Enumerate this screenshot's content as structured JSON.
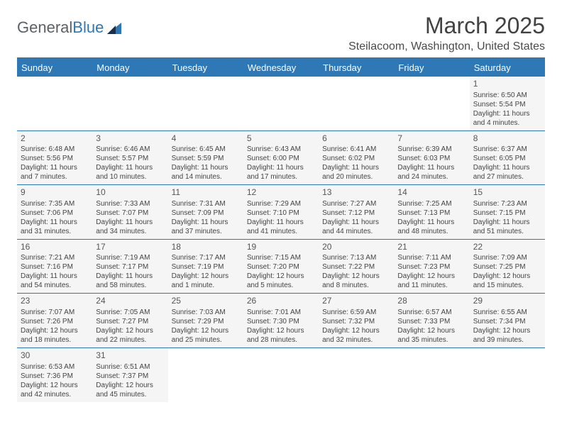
{
  "header": {
    "logo_text_1": "General",
    "logo_text_2": "Blue",
    "month_title": "March 2025",
    "location": "Steilacoom, Washington, United States"
  },
  "colors": {
    "brand_blue": "#2e78b6",
    "text_gray": "#444444",
    "header_text": "#ffffff",
    "cell_bg": "#f5f5f5",
    "page_bg": "#ffffff"
  },
  "typography": {
    "month_title_fontsize": 32,
    "location_fontsize": 16,
    "weekday_fontsize": 13,
    "daynum_fontsize": 12,
    "cell_fontsize": 10
  },
  "weekdays": [
    "Sunday",
    "Monday",
    "Tuesday",
    "Wednesday",
    "Thursday",
    "Friday",
    "Saturday"
  ],
  "weeks": [
    [
      null,
      null,
      null,
      null,
      null,
      null,
      {
        "day": "1",
        "sunrise": "Sunrise: 6:50 AM",
        "sunset": "Sunset: 5:54 PM",
        "daylight1": "Daylight: 11 hours",
        "daylight2": "and 4 minutes."
      }
    ],
    [
      {
        "day": "2",
        "sunrise": "Sunrise: 6:48 AM",
        "sunset": "Sunset: 5:56 PM",
        "daylight1": "Daylight: 11 hours",
        "daylight2": "and 7 minutes."
      },
      {
        "day": "3",
        "sunrise": "Sunrise: 6:46 AM",
        "sunset": "Sunset: 5:57 PM",
        "daylight1": "Daylight: 11 hours",
        "daylight2": "and 10 minutes."
      },
      {
        "day": "4",
        "sunrise": "Sunrise: 6:45 AM",
        "sunset": "Sunset: 5:59 PM",
        "daylight1": "Daylight: 11 hours",
        "daylight2": "and 14 minutes."
      },
      {
        "day": "5",
        "sunrise": "Sunrise: 6:43 AM",
        "sunset": "Sunset: 6:00 PM",
        "daylight1": "Daylight: 11 hours",
        "daylight2": "and 17 minutes."
      },
      {
        "day": "6",
        "sunrise": "Sunrise: 6:41 AM",
        "sunset": "Sunset: 6:02 PM",
        "daylight1": "Daylight: 11 hours",
        "daylight2": "and 20 minutes."
      },
      {
        "day": "7",
        "sunrise": "Sunrise: 6:39 AM",
        "sunset": "Sunset: 6:03 PM",
        "daylight1": "Daylight: 11 hours",
        "daylight2": "and 24 minutes."
      },
      {
        "day": "8",
        "sunrise": "Sunrise: 6:37 AM",
        "sunset": "Sunset: 6:05 PM",
        "daylight1": "Daylight: 11 hours",
        "daylight2": "and 27 minutes."
      }
    ],
    [
      {
        "day": "9",
        "sunrise": "Sunrise: 7:35 AM",
        "sunset": "Sunset: 7:06 PM",
        "daylight1": "Daylight: 11 hours",
        "daylight2": "and 31 minutes."
      },
      {
        "day": "10",
        "sunrise": "Sunrise: 7:33 AM",
        "sunset": "Sunset: 7:07 PM",
        "daylight1": "Daylight: 11 hours",
        "daylight2": "and 34 minutes."
      },
      {
        "day": "11",
        "sunrise": "Sunrise: 7:31 AM",
        "sunset": "Sunset: 7:09 PM",
        "daylight1": "Daylight: 11 hours",
        "daylight2": "and 37 minutes."
      },
      {
        "day": "12",
        "sunrise": "Sunrise: 7:29 AM",
        "sunset": "Sunset: 7:10 PM",
        "daylight1": "Daylight: 11 hours",
        "daylight2": "and 41 minutes."
      },
      {
        "day": "13",
        "sunrise": "Sunrise: 7:27 AM",
        "sunset": "Sunset: 7:12 PM",
        "daylight1": "Daylight: 11 hours",
        "daylight2": "and 44 minutes."
      },
      {
        "day": "14",
        "sunrise": "Sunrise: 7:25 AM",
        "sunset": "Sunset: 7:13 PM",
        "daylight1": "Daylight: 11 hours",
        "daylight2": "and 48 minutes."
      },
      {
        "day": "15",
        "sunrise": "Sunrise: 7:23 AM",
        "sunset": "Sunset: 7:15 PM",
        "daylight1": "Daylight: 11 hours",
        "daylight2": "and 51 minutes."
      }
    ],
    [
      {
        "day": "16",
        "sunrise": "Sunrise: 7:21 AM",
        "sunset": "Sunset: 7:16 PM",
        "daylight1": "Daylight: 11 hours",
        "daylight2": "and 54 minutes."
      },
      {
        "day": "17",
        "sunrise": "Sunrise: 7:19 AM",
        "sunset": "Sunset: 7:17 PM",
        "daylight1": "Daylight: 11 hours",
        "daylight2": "and 58 minutes."
      },
      {
        "day": "18",
        "sunrise": "Sunrise: 7:17 AM",
        "sunset": "Sunset: 7:19 PM",
        "daylight1": "Daylight: 12 hours",
        "daylight2": "and 1 minute."
      },
      {
        "day": "19",
        "sunrise": "Sunrise: 7:15 AM",
        "sunset": "Sunset: 7:20 PM",
        "daylight1": "Daylight: 12 hours",
        "daylight2": "and 5 minutes."
      },
      {
        "day": "20",
        "sunrise": "Sunrise: 7:13 AM",
        "sunset": "Sunset: 7:22 PM",
        "daylight1": "Daylight: 12 hours",
        "daylight2": "and 8 minutes."
      },
      {
        "day": "21",
        "sunrise": "Sunrise: 7:11 AM",
        "sunset": "Sunset: 7:23 PM",
        "daylight1": "Daylight: 12 hours",
        "daylight2": "and 11 minutes."
      },
      {
        "day": "22",
        "sunrise": "Sunrise: 7:09 AM",
        "sunset": "Sunset: 7:25 PM",
        "daylight1": "Daylight: 12 hours",
        "daylight2": "and 15 minutes."
      }
    ],
    [
      {
        "day": "23",
        "sunrise": "Sunrise: 7:07 AM",
        "sunset": "Sunset: 7:26 PM",
        "daylight1": "Daylight: 12 hours",
        "daylight2": "and 18 minutes."
      },
      {
        "day": "24",
        "sunrise": "Sunrise: 7:05 AM",
        "sunset": "Sunset: 7:27 PM",
        "daylight1": "Daylight: 12 hours",
        "daylight2": "and 22 minutes."
      },
      {
        "day": "25",
        "sunrise": "Sunrise: 7:03 AM",
        "sunset": "Sunset: 7:29 PM",
        "daylight1": "Daylight: 12 hours",
        "daylight2": "and 25 minutes."
      },
      {
        "day": "26",
        "sunrise": "Sunrise: 7:01 AM",
        "sunset": "Sunset: 7:30 PM",
        "daylight1": "Daylight: 12 hours",
        "daylight2": "and 28 minutes."
      },
      {
        "day": "27",
        "sunrise": "Sunrise: 6:59 AM",
        "sunset": "Sunset: 7:32 PM",
        "daylight1": "Daylight: 12 hours",
        "daylight2": "and 32 minutes."
      },
      {
        "day": "28",
        "sunrise": "Sunrise: 6:57 AM",
        "sunset": "Sunset: 7:33 PM",
        "daylight1": "Daylight: 12 hours",
        "daylight2": "and 35 minutes."
      },
      {
        "day": "29",
        "sunrise": "Sunrise: 6:55 AM",
        "sunset": "Sunset: 7:34 PM",
        "daylight1": "Daylight: 12 hours",
        "daylight2": "and 39 minutes."
      }
    ],
    [
      {
        "day": "30",
        "sunrise": "Sunrise: 6:53 AM",
        "sunset": "Sunset: 7:36 PM",
        "daylight1": "Daylight: 12 hours",
        "daylight2": "and 42 minutes."
      },
      {
        "day": "31",
        "sunrise": "Sunrise: 6:51 AM",
        "sunset": "Sunset: 7:37 PM",
        "daylight1": "Daylight: 12 hours",
        "daylight2": "and 45 minutes."
      },
      null,
      null,
      null,
      null,
      null
    ]
  ]
}
